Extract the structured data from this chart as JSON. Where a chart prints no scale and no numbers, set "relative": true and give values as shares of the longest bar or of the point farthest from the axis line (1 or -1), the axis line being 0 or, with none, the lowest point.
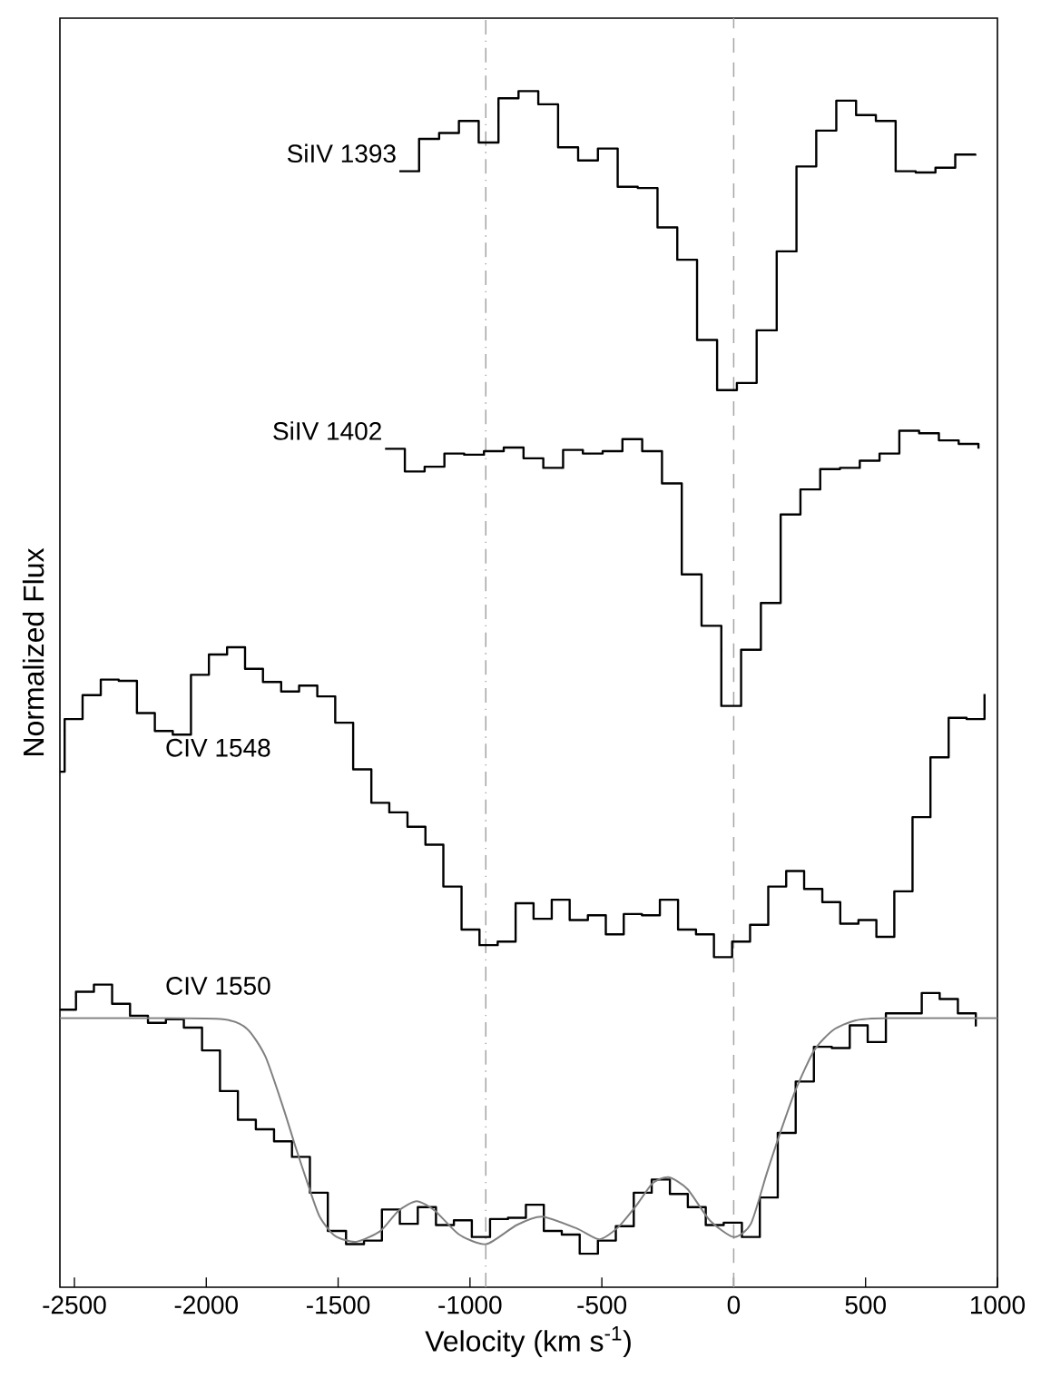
{
  "chart_data": {
    "type": "step",
    "xlabel": "Velocity  (km s$^{-1}$)",
    "ylabel": "Normalized Flux",
    "relative": true,
    "xlim": [
      -2555,
      1000
    ],
    "xticks": [
      -2500,
      -2000,
      -1500,
      -1000,
      -500,
      0,
      500,
      1000
    ],
    "ref_lines": [
      {
        "axis": "x",
        "value": -940,
        "color": "#a6a6a6",
        "line_style": "dashdot"
      },
      {
        "axis": "x",
        "value": 0,
        "color": "#a6a6a6",
        "line_style": "dashed"
      }
    ],
    "series": [
      {
        "name": "SiIV 1393",
        "color": "#000000",
        "x": [
          -1268,
          -1193,
          -1117,
          -1042,
          -967,
          -892,
          -816,
          -741,
          -666,
          -590,
          -515,
          -440,
          -364,
          -289,
          -214,
          -139,
          -63,
          12,
          87,
          163,
          238,
          313,
          389,
          464,
          539,
          614,
          690,
          765,
          840,
          916
        ],
        "values": [
          0.933,
          0.96,
          0.965,
          0.975,
          0.957,
          0.994,
          1.0,
          0.989,
          0.953,
          0.942,
          0.952,
          0.92,
          0.919,
          0.886,
          0.859,
          0.792,
          0.75,
          0.756,
          0.8,
          0.866,
          0.937,
          0.967,
          0.992,
          0.98,
          0.975,
          0.933,
          0.932,
          0.936,
          0.947,
          0.946
        ]
      },
      {
        "name": "SiIV 1402",
        "color": "#000000",
        "x": [
          -1322,
          -1247,
          -1172,
          -1097,
          -1022,
          -947,
          -872,
          -797,
          -722,
          -647,
          -572,
          -497,
          -422,
          -347,
          -272,
          -197,
          -122,
          -47,
          28,
          103,
          178,
          253,
          328,
          403,
          478,
          553,
          628,
          703,
          778,
          853,
          928
        ],
        "values": [
          0.701,
          0.682,
          0.686,
          0.697,
          0.696,
          0.699,
          0.702,
          0.693,
          0.685,
          0.7,
          0.697,
          0.699,
          0.709,
          0.699,
          0.672,
          0.596,
          0.553,
          0.486,
          0.533,
          0.572,
          0.646,
          0.667,
          0.684,
          0.685,
          0.691,
          0.697,
          0.716,
          0.714,
          0.708,
          0.705,
          0.701
        ]
      },
      {
        "name": "CIV 1548",
        "color": "#000000",
        "x": [
          -2555,
          -2537,
          -2469,
          -2400,
          -2332,
          -2263,
          -2195,
          -2127,
          -2058,
          -1990,
          -1921,
          -1853,
          -1785,
          -1716,
          -1648,
          -1579,
          -1511,
          -1443,
          -1374,
          -1306,
          -1237,
          -1169,
          -1101,
          -1032,
          -964,
          -895,
          -827,
          -759,
          -690,
          -622,
          -553,
          -485,
          -417,
          -348,
          -280,
          -211,
          -143,
          -75,
          -6,
          62,
          131,
          199,
          267,
          336,
          404,
          473,
          541,
          609,
          678,
          746,
          815,
          883,
          951
        ],
        "values": [
          0.431,
          0.475,
          0.495,
          0.508,
          0.507,
          0.48,
          0.465,
          0.462,
          0.512,
          0.529,
          0.535,
          0.517,
          0.506,
          0.498,
          0.503,
          0.494,
          0.472,
          0.433,
          0.405,
          0.397,
          0.385,
          0.37,
          0.335,
          0.299,
          0.286,
          0.289,
          0.321,
          0.308,
          0.324,
          0.307,
          0.311,
          0.295,
          0.312,
          0.311,
          0.324,
          0.299,
          0.295,
          0.276,
          0.289,
          0.303,
          0.335,
          0.348,
          0.333,
          0.322,
          0.304,
          0.307,
          0.293,
          0.331,
          0.393,
          0.443,
          0.476,
          0.475,
          0.496
        ]
      },
      {
        "name": "CIV 1550",
        "color": "#000000",
        "x": [
          -2555,
          -2494,
          -2426,
          -2357,
          -2289,
          -2221,
          -2153,
          -2085,
          -2016,
          -1948,
          -1880,
          -1812,
          -1743,
          -1675,
          -1607,
          -1539,
          -1470,
          -1402,
          -1334,
          -1266,
          -1198,
          -1129,
          -1061,
          -993,
          -924,
          -856,
          -788,
          -720,
          -652,
          -584,
          -515,
          -447,
          -379,
          -311,
          -242,
          -174,
          -106,
          -38,
          31,
          99,
          167,
          235,
          304,
          372,
          440,
          508,
          577,
          645,
          713,
          781,
          850,
          918
        ],
        "values": [
          0.232,
          0.247,
          0.253,
          0.237,
          0.227,
          0.221,
          0.224,
          0.217,
          0.198,
          0.164,
          0.14,
          0.132,
          0.122,
          0.109,
          0.079,
          0.047,
          0.036,
          0.039,
          0.065,
          0.053,
          0.067,
          0.052,
          0.056,
          0.042,
          0.057,
          0.058,
          0.069,
          0.047,
          0.044,
          0.028,
          0.039,
          0.051,
          0.079,
          0.09,
          0.078,
          0.067,
          0.052,
          0.054,
          0.042,
          0.075,
          0.129,
          0.172,
          0.201,
          0.2,
          0.219,
          0.205,
          0.229,
          0.229,
          0.246,
          0.241,
          0.229,
          0.218
        ]
      },
      {
        "type": "line",
        "color": "#808080",
        "x": [
          -2555,
          -2200,
          -1937,
          -1845,
          -1776,
          -1708,
          -1661,
          -1616,
          -1570,
          -1512,
          -1432,
          -1340,
          -1271,
          -1202,
          -1133,
          -1041,
          -938,
          -823,
          -726,
          -594,
          -510,
          -439,
          -367,
          -307,
          -247,
          -175,
          -91,
          0,
          65,
          125,
          173,
          233,
          305,
          377,
          460,
          580,
          1000
        ],
        "values": [
          0.225,
          0.225,
          0.224,
          0.216,
          0.193,
          0.15,
          0.117,
          0.087,
          0.059,
          0.043,
          0.038,
          0.047,
          0.064,
          0.072,
          0.064,
          0.044,
          0.036,
          0.052,
          0.059,
          0.049,
          0.04,
          0.05,
          0.069,
          0.087,
          0.092,
          0.082,
          0.056,
          0.042,
          0.053,
          0.095,
          0.127,
          0.164,
          0.198,
          0.215,
          0.223,
          0.225,
          0.225
        ]
      }
    ]
  }
}
